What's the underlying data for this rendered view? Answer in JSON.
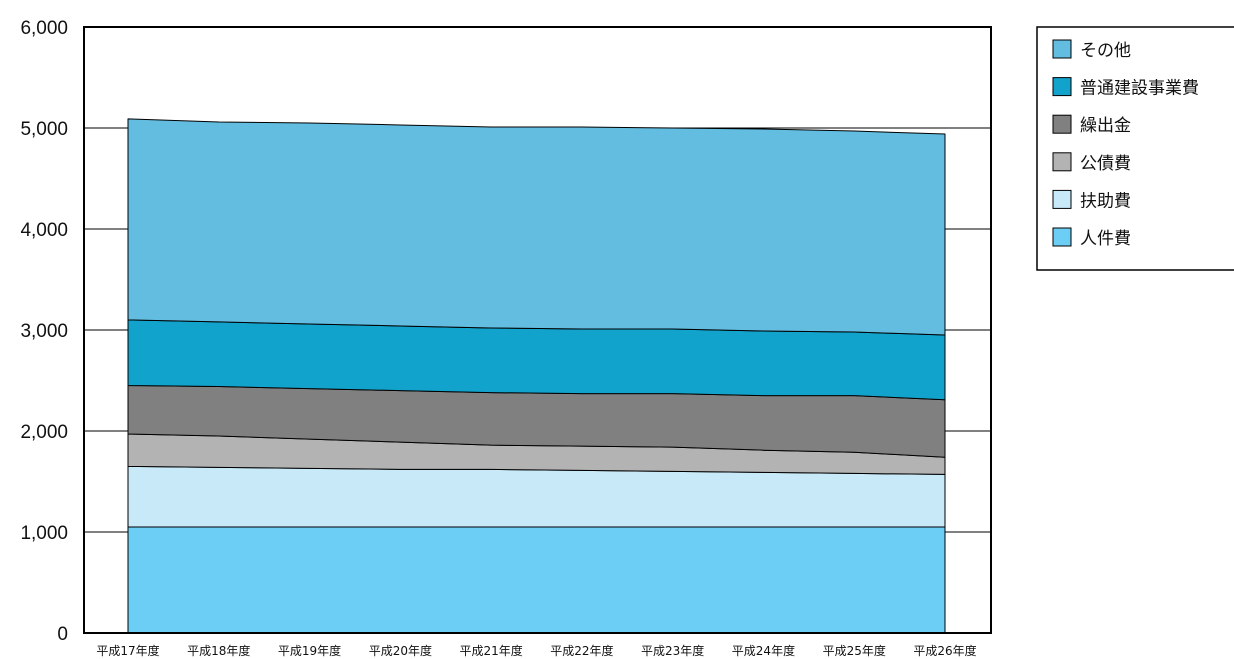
{
  "chart_data": {
    "type": "area",
    "stacked": true,
    "ylim": [
      0,
      6000
    ],
    "yticks": [
      0,
      1000,
      2000,
      3000,
      4000,
      5000,
      6000
    ],
    "ytick_labels": [
      "0",
      "1,000",
      "2,000",
      "3,000",
      "4,000",
      "5,000",
      "6,000"
    ],
    "grid": true,
    "legend_position": "top-right",
    "categories": [
      "平成17年度",
      "平成18年度",
      "平成19年度",
      "平成20年度",
      "平成21年度",
      "平成22年度",
      "平成23年度",
      "平成24年度",
      "平成25年度",
      "平成26年度"
    ],
    "series": [
      {
        "name": "人件費",
        "color": "#6dcef5",
        "values": [
          1050,
          1050,
          1050,
          1050,
          1050,
          1050,
          1050,
          1050,
          1050,
          1050
        ]
      },
      {
        "name": "扶助費",
        "color": "#c8e9f8",
        "values": [
          600,
          590,
          580,
          570,
          570,
          560,
          550,
          540,
          530,
          520
        ]
      },
      {
        "name": "公債費",
        "color": "#b3b3b3",
        "values": [
          320,
          310,
          290,
          270,
          240,
          240,
          240,
          220,
          210,
          170
        ]
      },
      {
        "name": "繰出金",
        "color": "#808080",
        "values": [
          480,
          490,
          500,
          510,
          520,
          520,
          530,
          540,
          560,
          570
        ]
      },
      {
        "name": "普通建設事業費",
        "color": "#12a3cc",
        "values": [
          650,
          640,
          640,
          640,
          640,
          640,
          640,
          640,
          630,
          640
        ]
      },
      {
        "name": "その他",
        "color": "#62bde0",
        "values": [
          1990,
          1980,
          1990,
          1990,
          1990,
          2000,
          1990,
          2000,
          1990,
          1990
        ]
      }
    ],
    "legend_order": [
      "その他",
      "普通建設事業費",
      "繰出金",
      "公債費",
      "扶助費",
      "人件費"
    ]
  }
}
